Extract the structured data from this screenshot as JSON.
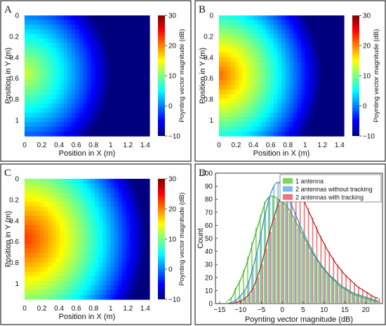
{
  "colormap": [
    "#00007f",
    "#0000ff",
    "#007fff",
    "#00ffff",
    "#7fff7f",
    "#ffff00",
    "#ff7f00",
    "#ff0000",
    "#7f0000"
  ],
  "panel_border_color": "#000000",
  "chart_data": [
    {
      "type": "heatmap",
      "panel": "A",
      "xlabel": "Position in X (m)",
      "ylabel": "Position in Y (m)",
      "colorbar_label": "Poynting vector magnitude (dB)",
      "x_ticks": [
        "0",
        "0.2",
        "0.4",
        "0.6",
        "0.8",
        "1",
        "1.2",
        "1.4"
      ],
      "y_ticks": [
        "0",
        "0.2",
        "0.4",
        "0.6",
        "0.8",
        "1"
      ],
      "colorbar_ticks": [
        "30",
        "20",
        "10",
        "0",
        "−10"
      ],
      "xlim": [
        0,
        1.45
      ],
      "ylim": [
        0,
        1.15
      ],
      "clim": [
        -10,
        30
      ],
      "field": {
        "source_x": 0.0,
        "source_y": 0.55,
        "peak_db": 13,
        "decay_db_per_m": 17,
        "grid": [
          32,
          26
        ]
      }
    },
    {
      "type": "heatmap",
      "panel": "B",
      "xlabel": "Position in X (m)",
      "ylabel": "Position in Y (m)",
      "colorbar_label": "Poynting vector magnitude (dB)",
      "x_ticks": [
        "0",
        "0.2",
        "0.4",
        "0.6",
        "0.8",
        "1",
        "1.2",
        "1.4"
      ],
      "y_ticks": [
        "0",
        "0.2",
        "0.4",
        "0.6",
        "0.8",
        "1"
      ],
      "colorbar_ticks": [
        "30",
        "20",
        "10",
        "0",
        "−10"
      ],
      "xlim": [
        0,
        1.45
      ],
      "ylim": [
        0,
        1.15
      ],
      "clim": [
        -10,
        30
      ],
      "field": {
        "source_x": 0.0,
        "source_y": 0.57,
        "peak_db": 21,
        "decay_db_per_m": 19,
        "grid": [
          32,
          26
        ]
      }
    },
    {
      "type": "heatmap",
      "panel": "C",
      "xlabel": "Position in X (m)",
      "ylabel": "Position in Y (m)",
      "colorbar_label": "Poynting vector magnitude (dB)",
      "x_ticks": [
        "0",
        "0.2",
        "0.4",
        "0.6",
        "0.8",
        "1",
        "1.2",
        "1.4"
      ],
      "y_ticks": [
        "0",
        "0.2",
        "0.4",
        "0.6",
        "0.8",
        "1"
      ],
      "colorbar_ticks": [
        "30",
        "20",
        "10",
        "0",
        "−10"
      ],
      "xlim": [
        0,
        1.45
      ],
      "ylim": [
        0,
        1.15
      ],
      "clim": [
        -10,
        30
      ],
      "field": {
        "source_x": 0.0,
        "source_y": 0.57,
        "peak_db": 23,
        "decay_db_per_m": 15,
        "grid": [
          32,
          26
        ]
      }
    },
    {
      "type": "bar",
      "panel": "D",
      "xlabel": "Poynting vector magnitude (dB)",
      "ylabel": "Count",
      "x_ticks": [
        -15,
        -10,
        -5,
        0,
        5,
        10,
        15,
        20
      ],
      "y_ticks": [
        0,
        10,
        20,
        30,
        40,
        50,
        60,
        70,
        80,
        90,
        100
      ],
      "xlim": [
        -16,
        24
      ],
      "ylim": [
        0,
        100
      ],
      "legend_position": "top-right",
      "bin_centers": [
        -13,
        -12,
        -11,
        -10,
        -9,
        -8,
        -7,
        -6,
        -5,
        -4,
        -3,
        -2,
        -1,
        0,
        1,
        2,
        3,
        4,
        5,
        6,
        7,
        8,
        9,
        10,
        11,
        12,
        13,
        14,
        15,
        16,
        17,
        18,
        19,
        20,
        21,
        22,
        23
      ],
      "series": [
        {
          "name": "1 antenna",
          "color": "#7ed957",
          "values": [
            2,
            5,
            12,
            18,
            26,
            36,
            47,
            58,
            68,
            78,
            82,
            82,
            80,
            78,
            75,
            70,
            64,
            58,
            52,
            46,
            40,
            35,
            30,
            26,
            22,
            19,
            16,
            13,
            11,
            9,
            7,
            6,
            5,
            4,
            3,
            2,
            1
          ]
        },
        {
          "name": "2 antennas without tracking",
          "color": "#78bdf0",
          "values": [
            0,
            1,
            3,
            6,
            10,
            17,
            28,
            40,
            55,
            70,
            82,
            90,
            93,
            90,
            84,
            77,
            70,
            62,
            55,
            48,
            42,
            36,
            31,
            27,
            23,
            20,
            17,
            14,
            12,
            10,
            8,
            7,
            6,
            5,
            4,
            3,
            2
          ]
        },
        {
          "name": "2 antennas with tracking",
          "color": "#f27474",
          "values": [
            0,
            0,
            1,
            2,
            4,
            7,
            12,
            20,
            30,
            42,
            55,
            66,
            76,
            83,
            87,
            90,
            89,
            86,
            80,
            73,
            66,
            59,
            52,
            46,
            40,
            35,
            30,
            26,
            22,
            19,
            16,
            13,
            11,
            9,
            7,
            5,
            4
          ]
        }
      ],
      "fit_line_colors": [
        "#4caf33",
        "#3c8fd0",
        "#b82828"
      ]
    }
  ]
}
